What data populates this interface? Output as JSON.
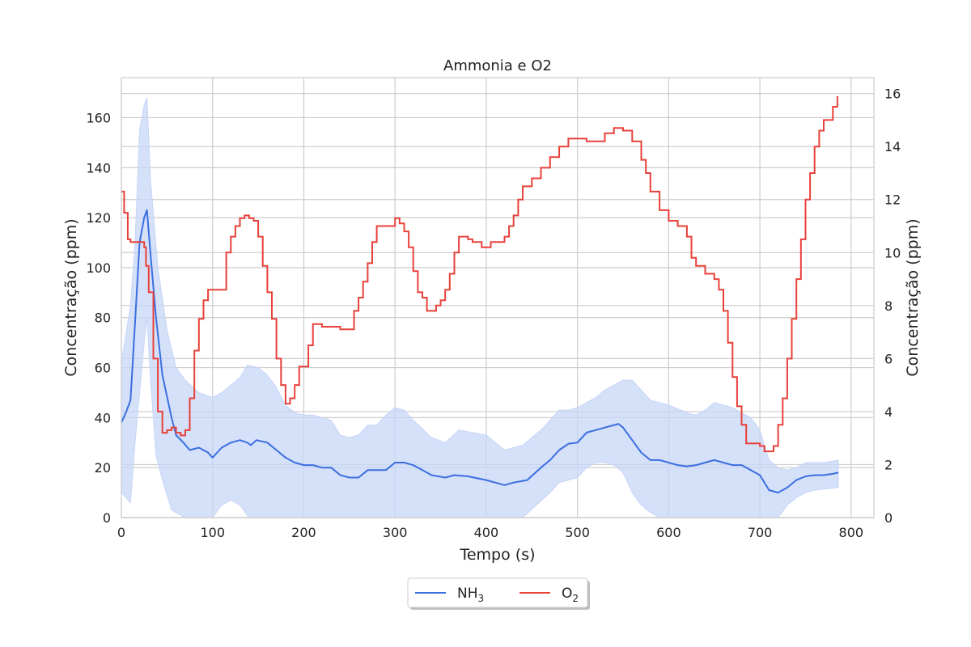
{
  "chart_data": {
    "type": "line",
    "title": "Ammonia e O2",
    "xlabel": "Tempo (s)",
    "ylabel_left": "Concentração (ppm)",
    "ylabel_right": "Concentração (ppm)",
    "xlim": [
      0,
      825
    ],
    "ylim_left": [
      0,
      176
    ],
    "ylim_right": [
      0,
      16.6
    ],
    "x_ticks": [
      0,
      100,
      200,
      300,
      400,
      500,
      600,
      700,
      800
    ],
    "y_left_ticks": [
      0,
      20,
      40,
      60,
      80,
      100,
      120,
      140,
      160
    ],
    "y_right_ticks": [
      0,
      2,
      4,
      6,
      8,
      10,
      12,
      14,
      16
    ],
    "grid": true,
    "legend_position": "bottom-center, below plot",
    "colors": {
      "nh3": "#3b6fe0",
      "nh3_band": "#c7d5f7",
      "o2": "#e8413a",
      "grid": "#cccccc",
      "frame": "#cccccc"
    },
    "series": [
      {
        "name": "NH₃",
        "axis": "left",
        "style": "line",
        "x": [
          0,
          5,
          10,
          15,
          20,
          25,
          28,
          32,
          38,
          45,
          55,
          60,
          68,
          75,
          85,
          95,
          100,
          110,
          120,
          130,
          138,
          142,
          148,
          160,
          170,
          180,
          190,
          200,
          210,
          220,
          230,
          240,
          250,
          260,
          270,
          280,
          290,
          300,
          310,
          320,
          330,
          340,
          355,
          365,
          380,
          400,
          420,
          430,
          445,
          460,
          470,
          480,
          490,
          500,
          510,
          520,
          530,
          540,
          545,
          550,
          560,
          570,
          580,
          590,
          600,
          610,
          620,
          630,
          640,
          650,
          660,
          670,
          680,
          690,
          700,
          710,
          720,
          730,
          740,
          750,
          760,
          770,
          780,
          786
        ],
        "values": [
          38,
          42,
          47,
          78,
          110,
          120,
          123,
          105,
          80,
          57,
          40,
          33,
          30,
          27,
          28,
          26,
          24,
          28,
          30,
          31,
          30,
          29,
          31,
          30,
          27,
          24,
          22,
          21,
          21,
          20,
          20,
          17,
          16,
          16,
          19,
          19,
          19,
          22,
          22,
          21,
          19,
          17,
          16,
          17,
          16.5,
          15,
          13,
          14,
          15,
          20,
          23,
          27,
          29.5,
          30,
          34,
          35,
          36,
          37,
          37.5,
          36,
          31,
          26,
          23,
          23,
          22,
          21,
          20.5,
          21,
          22,
          23,
          22,
          21,
          21,
          19,
          17,
          11,
          10,
          12,
          15,
          16.5,
          17,
          17,
          17.5,
          18
        ]
      },
      {
        "name": "NH₃ band (upper)",
        "axis": "left",
        "style": "band-upper",
        "x": [
          0,
          10,
          15,
          20,
          25,
          28,
          32,
          40,
          50,
          60,
          70,
          85,
          100,
          110,
          120,
          130,
          138,
          150,
          160,
          170,
          180,
          190,
          200,
          210,
          220,
          230,
          240,
          250,
          260,
          270,
          280,
          290,
          300,
          310,
          320,
          340,
          355,
          370,
          400,
          420,
          440,
          460,
          480,
          490,
          500,
          510,
          520,
          530,
          540,
          550,
          560,
          570,
          580,
          590,
          600,
          620,
          630,
          640,
          650,
          660,
          670,
          680,
          690,
          700,
          710,
          720,
          730,
          740,
          750,
          760,
          770,
          786
        ],
        "values": [
          62,
          85,
          110,
          155,
          165,
          168,
          135,
          100,
          75,
          60,
          55,
          50,
          48,
          50,
          53,
          56,
          61,
          60,
          57,
          52,
          45,
          42,
          41,
          41,
          40,
          39,
          33,
          32,
          33,
          37,
          37,
          41,
          44,
          43,
          39,
          32,
          30,
          35,
          33,
          27,
          29,
          35,
          43,
          43,
          44,
          46,
          48,
          51,
          53,
          55,
          55,
          51,
          47,
          46,
          45,
          42,
          41,
          43,
          46,
          45,
          44,
          42,
          40,
          35,
          23,
          20,
          19,
          20,
          22,
          22,
          22,
          23
        ]
      },
      {
        "name": "NH₃ band (lower)",
        "axis": "left",
        "style": "band-lower",
        "x": [
          0,
          5,
          10,
          15,
          20,
          25,
          28,
          32,
          38,
          45,
          55,
          60,
          70,
          85,
          100,
          110,
          120,
          130,
          140,
          150,
          200,
          300,
          400,
          440,
          455,
          470,
          480,
          490,
          500,
          510,
          520,
          530,
          540,
          550,
          560,
          570,
          580,
          590,
          600,
          690,
          700,
          710,
          720,
          730,
          740,
          750,
          760,
          786
        ],
        "values": [
          10,
          8,
          6,
          30,
          50,
          70,
          80,
          55,
          25,
          15,
          3,
          2,
          0,
          0,
          0,
          5,
          7,
          5,
          0,
          0,
          0,
          0,
          0,
          0,
          5,
          10,
          14,
          15,
          16,
          20,
          22,
          22,
          21,
          18,
          10,
          5,
          2,
          0,
          0,
          0,
          0,
          0,
          0,
          5,
          8,
          10,
          11,
          12
        ]
      },
      {
        "name": "O₂",
        "axis": "right",
        "style": "step",
        "x": [
          0,
          3,
          7,
          10,
          15,
          25,
          27,
          30,
          35,
          40,
          45,
          50,
          55,
          60,
          65,
          70,
          75,
          80,
          85,
          90,
          95,
          100,
          105,
          115,
          120,
          125,
          130,
          135,
          140,
          145,
          150,
          155,
          160,
          165,
          170,
          175,
          180,
          185,
          190,
          195,
          200,
          205,
          210,
          215,
          220,
          225,
          230,
          240,
          250,
          255,
          260,
          265,
          270,
          275,
          280,
          285,
          290,
          295,
          300,
          305,
          310,
          315,
          320,
          325,
          330,
          335,
          340,
          345,
          350,
          355,
          360,
          365,
          370,
          375,
          380,
          385,
          390,
          395,
          400,
          405,
          410,
          420,
          425,
          430,
          435,
          440,
          450,
          460,
          470,
          480,
          490,
          500,
          510,
          520,
          530,
          540,
          550,
          560,
          570,
          575,
          580,
          590,
          600,
          610,
          620,
          625,
          630,
          640,
          650,
          655,
          660,
          665,
          670,
          675,
          680,
          685,
          690,
          695,
          700,
          705,
          710,
          715,
          720,
          725,
          730,
          735,
          740,
          745,
          750,
          755,
          760,
          765,
          770,
          780,
          785
        ],
        "values": [
          12.3,
          11.5,
          10.5,
          10.4,
          10.4,
          10.2,
          9.5,
          8.5,
          6.0,
          4.0,
          3.2,
          3.3,
          3.4,
          3.2,
          3.1,
          3.3,
          4.5,
          6.3,
          7.5,
          8.2,
          8.6,
          8.6,
          8.6,
          10.0,
          10.6,
          11.0,
          11.3,
          11.4,
          11.3,
          11.2,
          10.6,
          9.5,
          8.5,
          7.5,
          6.0,
          5.0,
          4.3,
          4.5,
          5.0,
          5.7,
          5.7,
          6.5,
          7.3,
          7.3,
          7.2,
          7.2,
          7.2,
          7.1,
          7.1,
          7.8,
          8.3,
          8.9,
          9.6,
          10.4,
          11.0,
          11.0,
          11.0,
          11.0,
          11.3,
          11.1,
          10.8,
          10.2,
          9.3,
          8.5,
          8.3,
          7.8,
          7.8,
          8.0,
          8.2,
          8.6,
          9.2,
          10.0,
          10.6,
          10.6,
          10.5,
          10.4,
          10.4,
          10.2,
          10.2,
          10.4,
          10.4,
          10.6,
          11.0,
          11.4,
          12.0,
          12.5,
          12.8,
          13.2,
          13.6,
          14.0,
          14.3,
          14.3,
          14.2,
          14.2,
          14.5,
          14.7,
          14.6,
          14.2,
          13.5,
          13.0,
          12.3,
          11.6,
          11.2,
          11.0,
          10.6,
          9.8,
          9.5,
          9.2,
          9.0,
          8.6,
          7.8,
          6.6,
          5.3,
          4.2,
          3.5,
          2.8,
          2.8,
          2.8,
          2.7,
          2.5,
          2.5,
          2.7,
          3.5,
          4.5,
          6.0,
          7.5,
          9.0,
          10.5,
          12.0,
          13.0,
          14.0,
          14.6,
          15.0,
          15.5,
          15.9
        ]
      }
    ]
  },
  "legend": {
    "nh3_label": "NH",
    "nh3_sub": "3",
    "o2_label": "O",
    "o2_sub": "2"
  }
}
